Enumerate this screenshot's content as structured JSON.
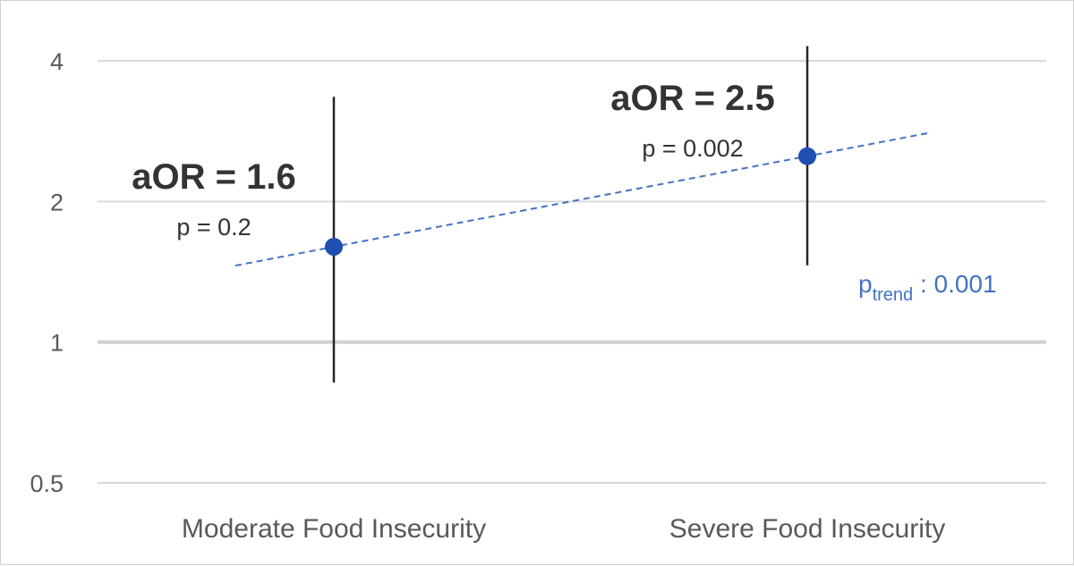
{
  "chart_data": {
    "type": "scatter",
    "y_scale": "log2",
    "ylim": [
      0.5,
      4
    ],
    "y_ticks": [
      {
        "value": 0.5,
        "label": "0.5"
      },
      {
        "value": 1,
        "label": "1"
      },
      {
        "value": 2,
        "label": "2"
      },
      {
        "value": 4,
        "label": "4"
      }
    ],
    "reference_line": 1,
    "grid": true,
    "categories": [
      "Moderate Food Insecurity",
      "Severe Food Insecurity"
    ],
    "points": [
      {
        "category": "Moderate Food Insecurity",
        "value": 1.6,
        "ci_low": 0.82,
        "ci_high": 3.35,
        "label": "aOR = 1.6",
        "p_label": "p = 0.2"
      },
      {
        "category": "Severe Food Insecurity",
        "value": 2.5,
        "ci_low": 1.46,
        "ci_high": 4.3,
        "label": "aOR = 2.5",
        "p_label": "p = 0.002"
      }
    ],
    "trend": {
      "style": "dashed",
      "color": "#4472c4",
      "p_prefix": "p",
      "p_subscript": "trend",
      "p_value": " : 0.001"
    },
    "marker_color": "#1f4fb0",
    "errorbar_color": "#262626"
  }
}
